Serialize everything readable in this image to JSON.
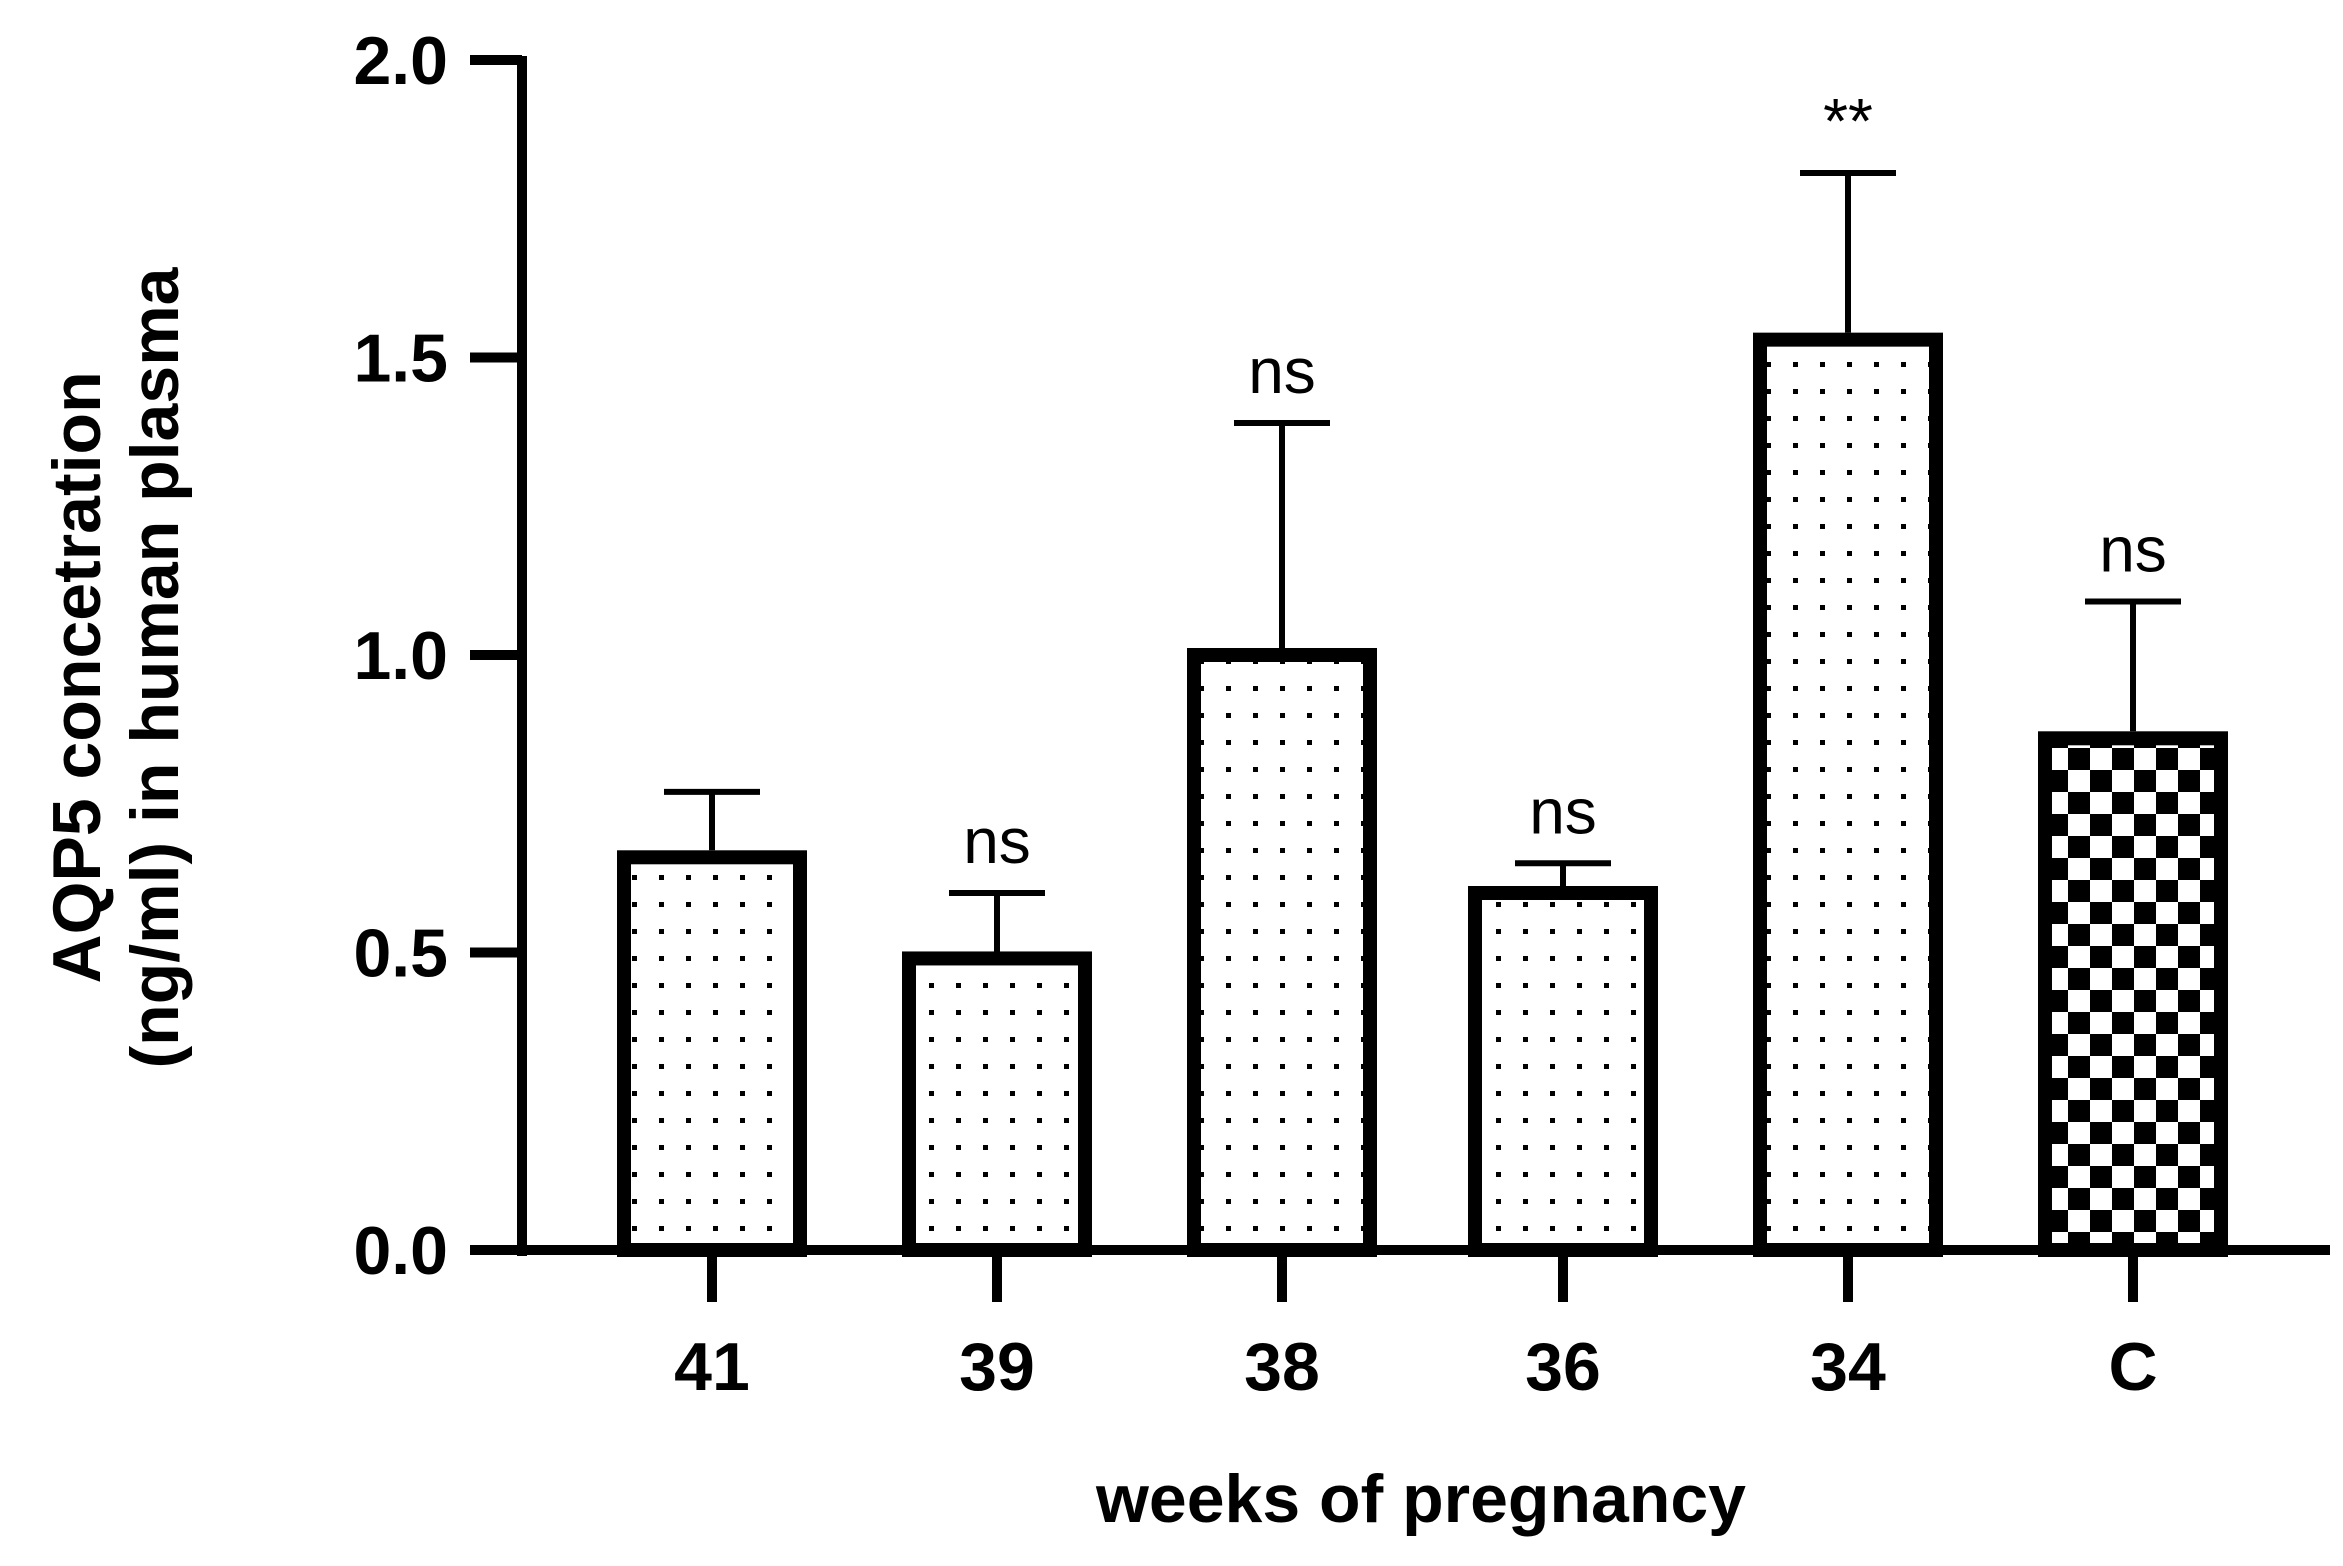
{
  "chart_data": {
    "type": "bar",
    "categories": [
      "41",
      "39",
      "38",
      "36",
      "34",
      "C"
    ],
    "values": [
      0.66,
      0.49,
      1.0,
      0.6,
      1.53,
      0.86
    ],
    "errors": [
      0.11,
      0.11,
      0.39,
      0.05,
      0.28,
      0.23
    ],
    "annotations": [
      "",
      "ns",
      "ns",
      "ns",
      "**",
      "ns"
    ],
    "patterns": [
      "dots",
      "dots",
      "dots",
      "dots",
      "dots",
      "checker"
    ],
    "xlabel": "weeks of pregnancy",
    "ylabel_lines": [
      "AQP5 concetration",
      "(ng/ml) in human plasma"
    ],
    "ylim": [
      0,
      2.0
    ],
    "yticks": [
      "0.0",
      "0.5",
      "1.0",
      "1.5",
      "2.0"
    ],
    "grid": false,
    "colors": {
      "stroke": "#000000",
      "fill": "#ffffff"
    }
  }
}
